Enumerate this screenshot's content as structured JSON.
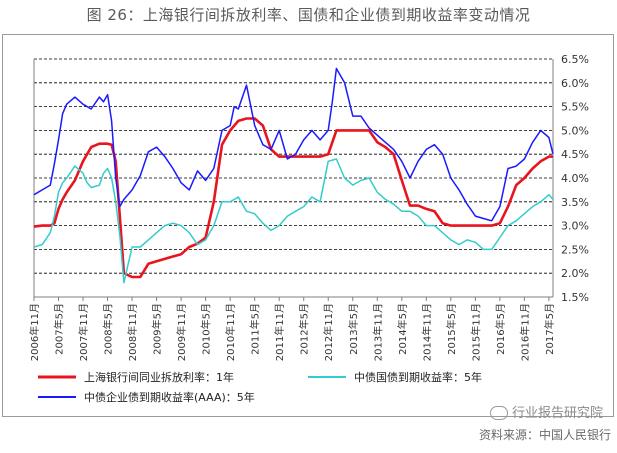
{
  "title": "图 26：上海银行间拆放利率、国债和企业债到期收益率变动情况",
  "source": "资料来源：中国人民银行",
  "watermark": "行业报告研究院",
  "colors": {
    "shibor": "#e8141e",
    "treasury": "#33cccc",
    "corporate": "#1a1aff",
    "grid": "#000000",
    "axis": "#808080"
  },
  "chart_data": {
    "type": "line",
    "x_ticks": [
      "2006年11月",
      "2007年5月",
      "2007年11月",
      "2008年5月",
      "2008年11月",
      "2009年5月",
      "2009年11月",
      "2010年5月",
      "2010年11月",
      "2011年5月",
      "2011年11月",
      "2012年5月",
      "2012年11月",
      "2013年5月",
      "2013年11月",
      "2014年5月",
      "2014年11月",
      "2015年5月",
      "2015年11月",
      "2016年5月",
      "2016年11月",
      "2017年5月"
    ],
    "y_ticks": [
      "1.5%",
      "2.0%",
      "2.5%",
      "3.0%",
      "3.5%",
      "4.0%",
      "4.5%",
      "5.0%",
      "5.5%",
      "6.0%",
      "6.5%"
    ],
    "ylim": [
      1.5,
      6.5
    ],
    "y_axis_side": "right",
    "grid": "horizontal dashed",
    "legend": [
      {
        "name": "上海银行间同业拆放利率：1年",
        "key": "shibor"
      },
      {
        "name": "中债国债到期收益率：5年",
        "key": "treasury"
      },
      {
        "name": "中债企业债到期收益率(AAA)：5年",
        "key": "corporate"
      }
    ],
    "series": [
      {
        "name": "上海银行间同业拆放利率：1年",
        "key": "shibor",
        "x": [
          0,
          2,
          4,
          5,
          6,
          7,
          8,
          10,
          12,
          14,
          16,
          17,
          18,
          19,
          20,
          21,
          22,
          24,
          26,
          28,
          30,
          32,
          34,
          36,
          38,
          40,
          42,
          44,
          46,
          48,
          50,
          52,
          54,
          56,
          58,
          60,
          62,
          64,
          66,
          68,
          70,
          72,
          74,
          76,
          78,
          80,
          82,
          84,
          86,
          88,
          90,
          92,
          94,
          96,
          98,
          100,
          102,
          104,
          106,
          108,
          110,
          112,
          114,
          116,
          118,
          120,
          122,
          124,
          126,
          127
        ],
        "y": [
          2.98,
          3.0,
          3.0,
          3.05,
          3.35,
          3.55,
          3.7,
          3.95,
          4.35,
          4.65,
          4.72,
          4.72,
          4.72,
          4.7,
          4.35,
          3.2,
          2.0,
          1.92,
          1.92,
          2.2,
          2.25,
          2.3,
          2.35,
          2.4,
          2.55,
          2.62,
          2.75,
          3.5,
          4.7,
          5.0,
          5.2,
          5.25,
          5.25,
          5.1,
          4.6,
          4.45,
          4.45,
          4.45,
          4.45,
          4.45,
          4.45,
          4.5,
          5.0,
          5.0,
          5.0,
          5.0,
          5.0,
          4.75,
          4.65,
          4.5,
          3.95,
          3.42,
          3.42,
          3.35,
          3.3,
          3.05,
          3.0,
          3.0,
          3.0,
          3.0,
          3.0,
          3.0,
          3.05,
          3.4,
          3.85,
          4.0,
          4.2,
          4.35,
          4.45,
          4.45
        ]
      },
      {
        "name": "中债国债到期收益率：5年",
        "key": "treasury",
        "x": [
          0,
          2,
          4,
          5,
          6,
          7,
          8,
          10,
          12,
          13,
          14,
          16,
          17,
          18,
          19,
          20,
          21,
          22,
          24,
          26,
          28,
          30,
          32,
          34,
          36,
          38,
          40,
          42,
          44,
          46,
          48,
          50,
          52,
          54,
          56,
          58,
          60,
          62,
          64,
          66,
          68,
          70,
          72,
          74,
          76,
          78,
          80,
          82,
          84,
          86,
          88,
          90,
          92,
          94,
          96,
          98,
          100,
          102,
          104,
          106,
          108,
          110,
          112,
          114,
          116,
          118,
          120,
          122,
          124,
          126,
          127
        ],
        "y": [
          2.55,
          2.6,
          2.85,
          3.2,
          3.7,
          3.9,
          4.0,
          4.25,
          4.1,
          3.9,
          3.8,
          3.85,
          4.1,
          4.2,
          4.0,
          3.5,
          2.8,
          1.8,
          2.55,
          2.55,
          2.7,
          2.85,
          3.0,
          3.05,
          3.0,
          2.85,
          2.6,
          2.7,
          3.0,
          3.5,
          3.5,
          3.6,
          3.3,
          3.25,
          3.05,
          2.9,
          3.0,
          3.2,
          3.3,
          3.4,
          3.6,
          3.5,
          4.35,
          4.4,
          4.0,
          3.85,
          3.95,
          4.0,
          3.7,
          3.55,
          3.45,
          3.3,
          3.3,
          3.2,
          3.0,
          3.0,
          2.85,
          2.7,
          2.6,
          2.7,
          2.65,
          2.5,
          2.5,
          2.75,
          3.0,
          3.1,
          3.25,
          3.4,
          3.5,
          3.65,
          3.55
        ]
      },
      {
        "name": "中债企业债到期收益率(AAA)：5年",
        "key": "corporate",
        "x": [
          0,
          2,
          4,
          5,
          6,
          7,
          8,
          10,
          12,
          14,
          16,
          17,
          18,
          19,
          20,
          21,
          22,
          24,
          26,
          28,
          30,
          32,
          34,
          36,
          38,
          40,
          42,
          44,
          46,
          48,
          49,
          50,
          52,
          54,
          56,
          58,
          60,
          62,
          64,
          66,
          68,
          70,
          72,
          73,
          74,
          76,
          78,
          80,
          82,
          84,
          86,
          88,
          90,
          92,
          94,
          96,
          98,
          100,
          102,
          104,
          106,
          108,
          110,
          112,
          114,
          116,
          118,
          120,
          122,
          124,
          126,
          127
        ],
        "y": [
          3.65,
          3.75,
          3.85,
          4.3,
          4.8,
          5.35,
          5.55,
          5.7,
          5.55,
          5.45,
          5.7,
          5.6,
          5.75,
          5.2,
          4.0,
          3.4,
          3.55,
          3.75,
          4.05,
          4.55,
          4.65,
          4.45,
          4.2,
          3.9,
          3.75,
          4.15,
          3.95,
          4.2,
          5.0,
          5.1,
          5.5,
          5.45,
          5.95,
          5.1,
          4.7,
          4.6,
          5.0,
          4.4,
          4.5,
          4.8,
          5.0,
          4.8,
          5.0,
          5.6,
          6.3,
          6.0,
          5.3,
          5.3,
          5.05,
          4.9,
          4.75,
          4.6,
          4.35,
          4.0,
          4.35,
          4.6,
          4.7,
          4.5,
          4.0,
          3.75,
          3.45,
          3.2,
          3.15,
          3.1,
          3.4,
          4.2,
          4.25,
          4.4,
          4.75,
          5.0,
          4.85,
          4.5
        ]
      }
    ]
  }
}
